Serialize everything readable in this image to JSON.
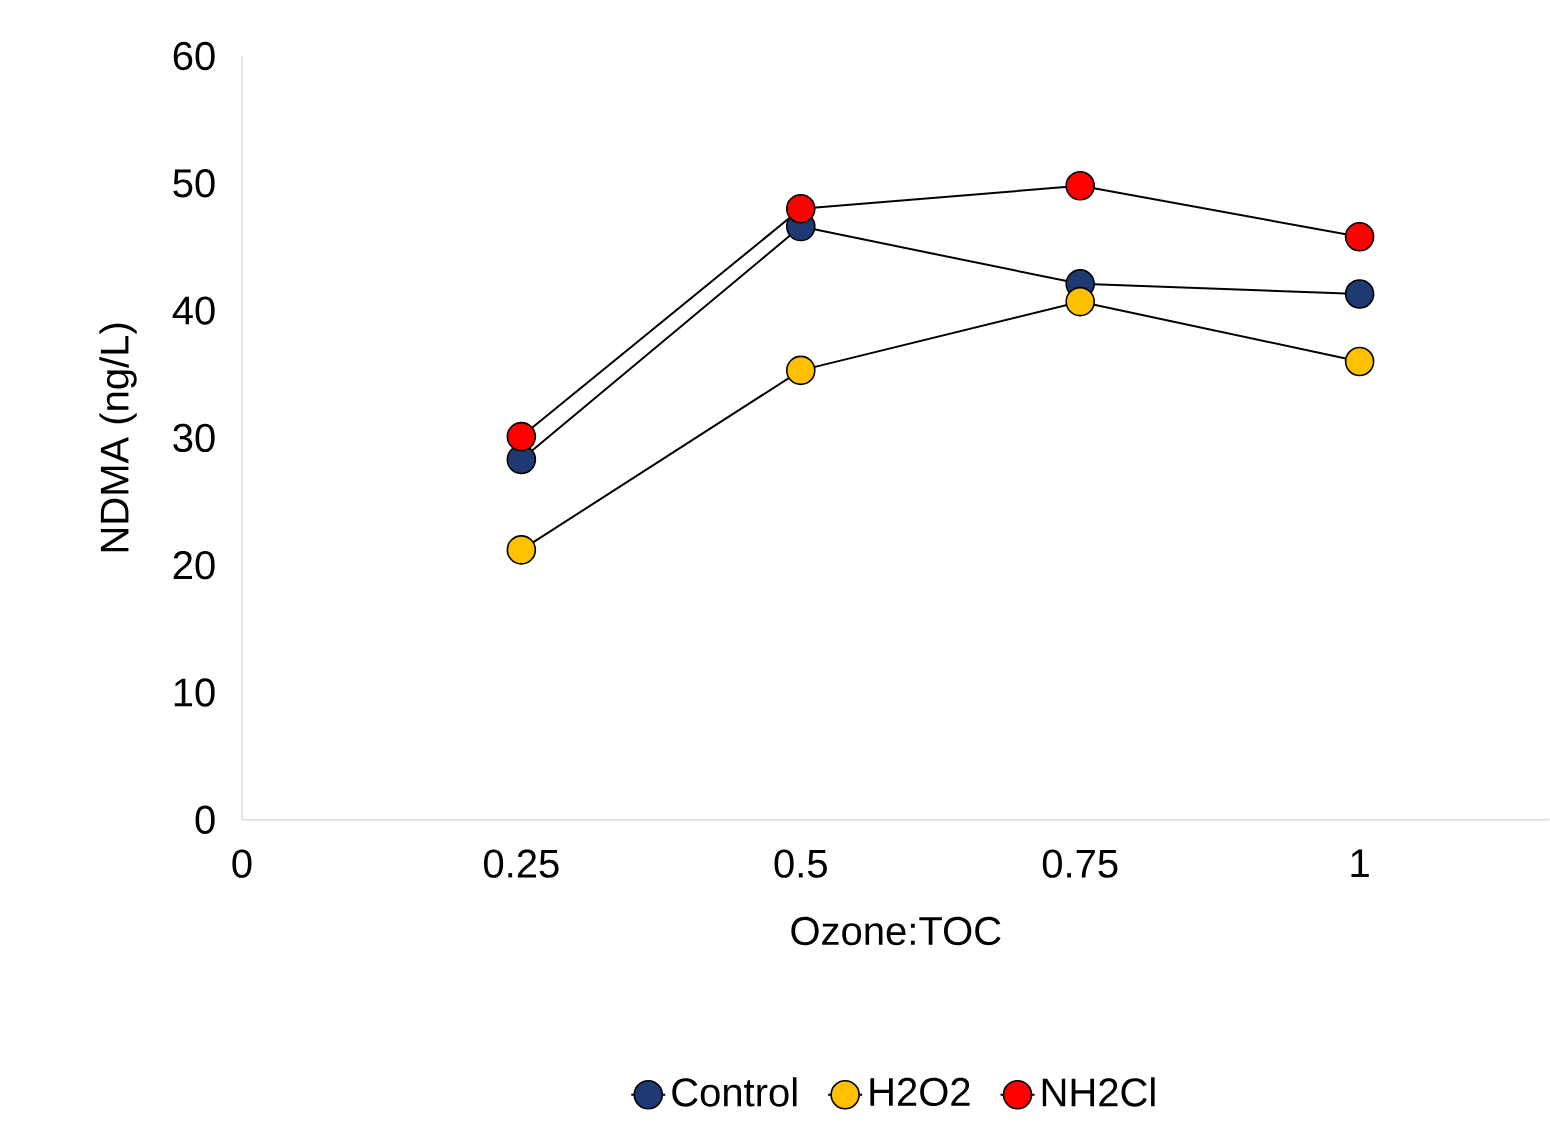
{
  "chart_data": {
    "type": "line",
    "xlabel": "Ozone:TOC",
    "ylabel": "NDMA (ng/L)",
    "x": [
      0.25,
      0.5,
      0.75,
      1
    ],
    "series": [
      {
        "name": "Control",
        "color": "#1f3a73",
        "values": [
          28.3,
          46.6,
          42.1,
          41.3
        ]
      },
      {
        "name": "H2O2",
        "color": "#ffc000",
        "values": [
          21.2,
          35.3,
          40.7,
          36.0
        ]
      },
      {
        "name": "NH2Cl",
        "color": "#ff0000",
        "values": [
          30.1,
          48.0,
          49.8,
          45.8
        ]
      }
    ],
    "xlim": [
      0,
      1.17
    ],
    "xticks": [
      0,
      0.25,
      0.5,
      0.75,
      1
    ],
    "ylim": [
      0,
      60
    ],
    "yticks": [
      0,
      10,
      20,
      30,
      40,
      50,
      60
    ],
    "grid": false,
    "legend": "bottom",
    "marker": "circle",
    "line_style": "solid"
  }
}
